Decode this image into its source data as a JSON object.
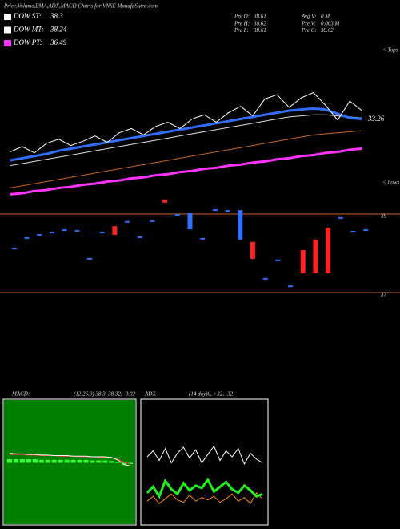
{
  "header": {
    "title": "Price,Volume,EMA,ADX,MACD Charts for VNSE MunafaSutra.com",
    "dow": [
      {
        "label": "DOW ST:",
        "value": 38.3,
        "color": "#ffffff"
      },
      {
        "label": "DOW MT:",
        "value": 38.24,
        "color": "#ffffff"
      },
      {
        "label": "DOW PT:",
        "value": 36.49,
        "color": "#ff33ff"
      }
    ],
    "info": [
      {
        "label": "Pre O:",
        "text": "38.61"
      },
      {
        "label": "Avg V:",
        "text": "0 M"
      },
      {
        "label": "Pre H:",
        "text": "38.62"
      },
      {
        "label": "Pre V:",
        "text": "0.003 M"
      },
      {
        "label": "Pre L:",
        "text": "38.61"
      },
      {
        "label": "Pre C:",
        "text": "38.62"
      }
    ]
  },
  "chart_data": [
    {
      "type": "line",
      "tops_label": "< Tops",
      "lows_label": "< Lows",
      "annotation": 33.26,
      "categories": [
        null,
        null,
        null,
        null,
        null,
        null,
        null,
        null,
        null,
        null,
        null,
        null,
        null,
        null,
        null,
        null,
        null,
        null,
        null,
        null,
        null,
        null,
        null,
        null,
        null,
        null,
        null,
        null,
        null,
        null
      ],
      "ylim": [
        26,
        40
      ],
      "series": [
        {
          "color": "#ff33ff",
          "line_width": 3,
          "values": [
            26.2,
            26.3,
            26.5,
            26.6,
            26.8,
            26.9,
            27.1,
            27.2,
            27.4,
            27.5,
            27.7,
            27.8,
            28.0,
            28.1,
            28.3,
            28.4,
            28.6,
            28.7,
            28.9,
            29.0,
            29.2,
            29.3,
            29.5,
            29.6,
            29.8,
            29.9,
            30.1,
            30.2,
            30.4,
            30.5
          ]
        },
        {
          "color": "#c8651b",
          "line_width": 1,
          "values": [
            26.8,
            27.0,
            27.2,
            27.4,
            27.6,
            27.8,
            28.0,
            28.2,
            28.4,
            28.6,
            28.8,
            29.0,
            29.2,
            29.4,
            29.6,
            29.8,
            30.0,
            30.2,
            30.4,
            30.6,
            30.8,
            31.0,
            31.2,
            31.4,
            31.6,
            31.8,
            31.9,
            32.0,
            32.1,
            32.2
          ]
        },
        {
          "color": "#dddddd",
          "line_width": 1,
          "values": [
            28.9,
            29.1,
            29.3,
            29.5,
            29.7,
            29.9,
            30.1,
            30.3,
            30.5,
            30.7,
            30.9,
            31.1,
            31.3,
            31.5,
            31.7,
            31.9,
            32.1,
            32.3,
            32.5,
            32.7,
            32.9,
            33.1,
            33.3,
            33.5,
            33.6,
            33.7,
            33.7,
            33.6,
            33.5,
            33.4
          ]
        },
        {
          "color": "#2f6fff",
          "line_width": 3,
          "values": [
            29.4,
            29.6,
            29.8,
            30.0,
            30.3,
            30.5,
            30.7,
            30.9,
            31.1,
            31.3,
            31.5,
            31.7,
            31.9,
            32.1,
            32.3,
            32.5,
            32.7,
            32.9,
            33.1,
            33.3,
            33.5,
            33.7,
            33.9,
            34.1,
            34.2,
            34.3,
            34.2,
            33.8,
            33.4,
            33.3
          ]
        },
        {
          "color": "#ffffff",
          "line_width": 1,
          "values": [
            30.2,
            30.7,
            30.1,
            31.0,
            31.4,
            30.8,
            31.2,
            31.7,
            31.1,
            32.0,
            32.4,
            31.8,
            32.6,
            33.0,
            32.4,
            33.3,
            33.7,
            33.0,
            33.9,
            34.5,
            33.6,
            35.2,
            35.6,
            34.4,
            35.3,
            35.8,
            34.6,
            33.2,
            35.0,
            34.1
          ]
        }
      ]
    },
    {
      "type": "range",
      "categories": [
        null,
        null,
        null,
        null,
        null,
        null,
        null,
        null,
        null,
        null,
        null,
        null,
        null,
        null,
        null,
        null,
        null,
        null,
        null,
        null,
        null,
        null,
        null,
        null,
        null,
        null,
        null,
        null,
        null
      ],
      "high": [
        38.12,
        38.39,
        38.47,
        38.53,
        38.59,
        38.57,
        37.86,
        38.53,
        38.67,
        38.8,
        38.41,
        38.82,
        39.35,
        38.98,
        39.0,
        38.37,
        39.1,
        39.08,
        39.08,
        38.27,
        37.35,
        37.82,
        37.16,
        38.06,
        38.33,
        38.63,
        38.9,
        38.55,
        38.59
      ],
      "low": [
        38.12,
        38.39,
        38.47,
        38.53,
        38.59,
        38.57,
        37.86,
        38.53,
        38.49,
        38.8,
        38.41,
        38.82,
        39.31,
        38.98,
        38.63,
        38.37,
        39.1,
        39.08,
        38.37,
        37.88,
        37.35,
        37.82,
        37.16,
        37.51,
        37.51,
        37.51,
        38.9,
        38.55,
        38.59
      ],
      "colors": [
        "#2f6fff",
        "#2f6fff",
        "#2f6fff",
        "#2f6fff",
        "#2f6fff",
        "#2f6fff",
        "#2f6fff",
        "#2f6fff",
        "#ff2222",
        "#2f6fff",
        "#2f6fff",
        "#2f6fff",
        "#ff2222",
        "#2f6fff",
        "#2f6fff",
        "#2f6fff",
        "#2f6fff",
        "#2f6fff",
        "#2f6fff",
        "#ff2222",
        "#2f6fff",
        "#2f6fff",
        "#2f6fff",
        "#ff2222",
        "#ff2222",
        "#ff2222",
        "#2f6fff",
        "#2f6fff",
        "#2f6fff"
      ],
      "ylim": [
        37,
        39
      ],
      "yticks": [
        37,
        39
      ]
    },
    {
      "type": "line",
      "title": "MACD:",
      "subtitle": "(12,26,9) 38.3, 38.32, -0.02",
      "background": "#008000",
      "categories": [
        null,
        null,
        null,
        null,
        null,
        null,
        null,
        null,
        null,
        null,
        null,
        null,
        null,
        null,
        null,
        null,
        null,
        null,
        null,
        null
      ],
      "ylim": [
        -1,
        1
      ],
      "series": [
        {
          "color": "#33ff33",
          "kind": "bar",
          "values": [
            0.06,
            0.06,
            0.06,
            0.06,
            0.06,
            0.05,
            0.05,
            0.05,
            0.05,
            0.05,
            0.05,
            0.05,
            0.05,
            0.04,
            0.04,
            0.04,
            0.03,
            0.02,
            -0.03,
            -0.02
          ]
        },
        {
          "color": "#ff3333",
          "line_width": 1,
          "values": [
            0.14,
            0.14,
            0.14,
            0.13,
            0.13,
            0.12,
            0.12,
            0.12,
            0.11,
            0.11,
            0.11,
            0.1,
            0.1,
            0.1,
            0.09,
            0.09,
            0.09,
            0.06,
            0.01,
            -0.02
          ]
        },
        {
          "color": "#ffffff",
          "line_width": 1,
          "values": [
            0.16,
            0.15,
            0.15,
            0.14,
            0.14,
            0.13,
            0.13,
            0.12,
            0.12,
            0.12,
            0.11,
            0.11,
            0.11,
            0.1,
            0.1,
            0.1,
            0.09,
            0.05,
            -0.03,
            -0.05
          ]
        }
      ]
    },
    {
      "type": "line",
      "title": "ADX",
      "subtitle": "(14  day)0, +32, -32",
      "background": "#000000",
      "categories": [
        null,
        null,
        null,
        null,
        null,
        null,
        null,
        null,
        null,
        null,
        null,
        null,
        null,
        null,
        null,
        null,
        null,
        null,
        null,
        null
      ],
      "ylim": [
        0,
        100
      ],
      "series": [
        {
          "color": "#ff8800",
          "line_width": 1,
          "values": [
            18,
            22,
            16,
            20,
            24,
            19,
            17,
            23,
            18,
            21,
            19,
            22,
            17,
            20,
            24,
            18,
            21,
            16,
            25,
            20
          ]
        },
        {
          "color": "#22ee22",
          "line_width": 3,
          "values": [
            25,
            30,
            22,
            35,
            28,
            24,
            33,
            27,
            31,
            29,
            36,
            26,
            30,
            34,
            28,
            25,
            31,
            27,
            22,
            24
          ]
        },
        {
          "color": "#ffffff",
          "line_width": 1,
          "values": [
            55,
            60,
            52,
            62,
            50,
            58,
            63,
            54,
            61,
            50,
            57,
            64,
            52,
            60,
            55,
            62,
            49,
            58,
            53,
            50
          ]
        }
      ]
    }
  ]
}
